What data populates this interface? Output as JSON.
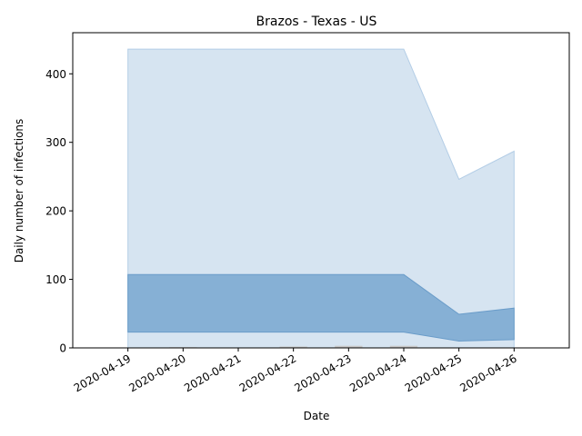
{
  "chart_data": {
    "type": "area",
    "title": "Brazos - Texas - US",
    "xlabel": "Date",
    "ylabel": "Daily number of infections",
    "x": [
      "2020-04-19",
      "2020-04-20",
      "2020-04-21",
      "2020-04-22",
      "2020-04-23",
      "2020-04-24",
      "2020-04-25",
      "2020-04-26"
    ],
    "xlim": [
      "2020-04-18",
      "2020-04-27"
    ],
    "ylim": [
      0,
      460
    ],
    "yticks": [
      0,
      100,
      200,
      300,
      400
    ],
    "grid": false,
    "bands": [
      {
        "lower": [
          0,
          0,
          0,
          0,
          0,
          0,
          0,
          0
        ],
        "upper": [
          436,
          436,
          436,
          436,
          436,
          436,
          246,
          287
        ],
        "color": "#d6e4f1",
        "edge": "#b3cde6"
      },
      {
        "lower": [
          23,
          23,
          23,
          23,
          23,
          23,
          10,
          12
        ],
        "upper": [
          107,
          107,
          107,
          107,
          107,
          107,
          49,
          58
        ],
        "color": "#86b0d5",
        "edge": "#6a9cc9"
      }
    ],
    "bars": {
      "x": [
        "2020-04-20",
        "2020-04-22",
        "2020-04-23",
        "2020-04-24"
      ],
      "values": [
        1,
        2,
        3,
        3
      ],
      "color": "#c8c8c8"
    }
  }
}
